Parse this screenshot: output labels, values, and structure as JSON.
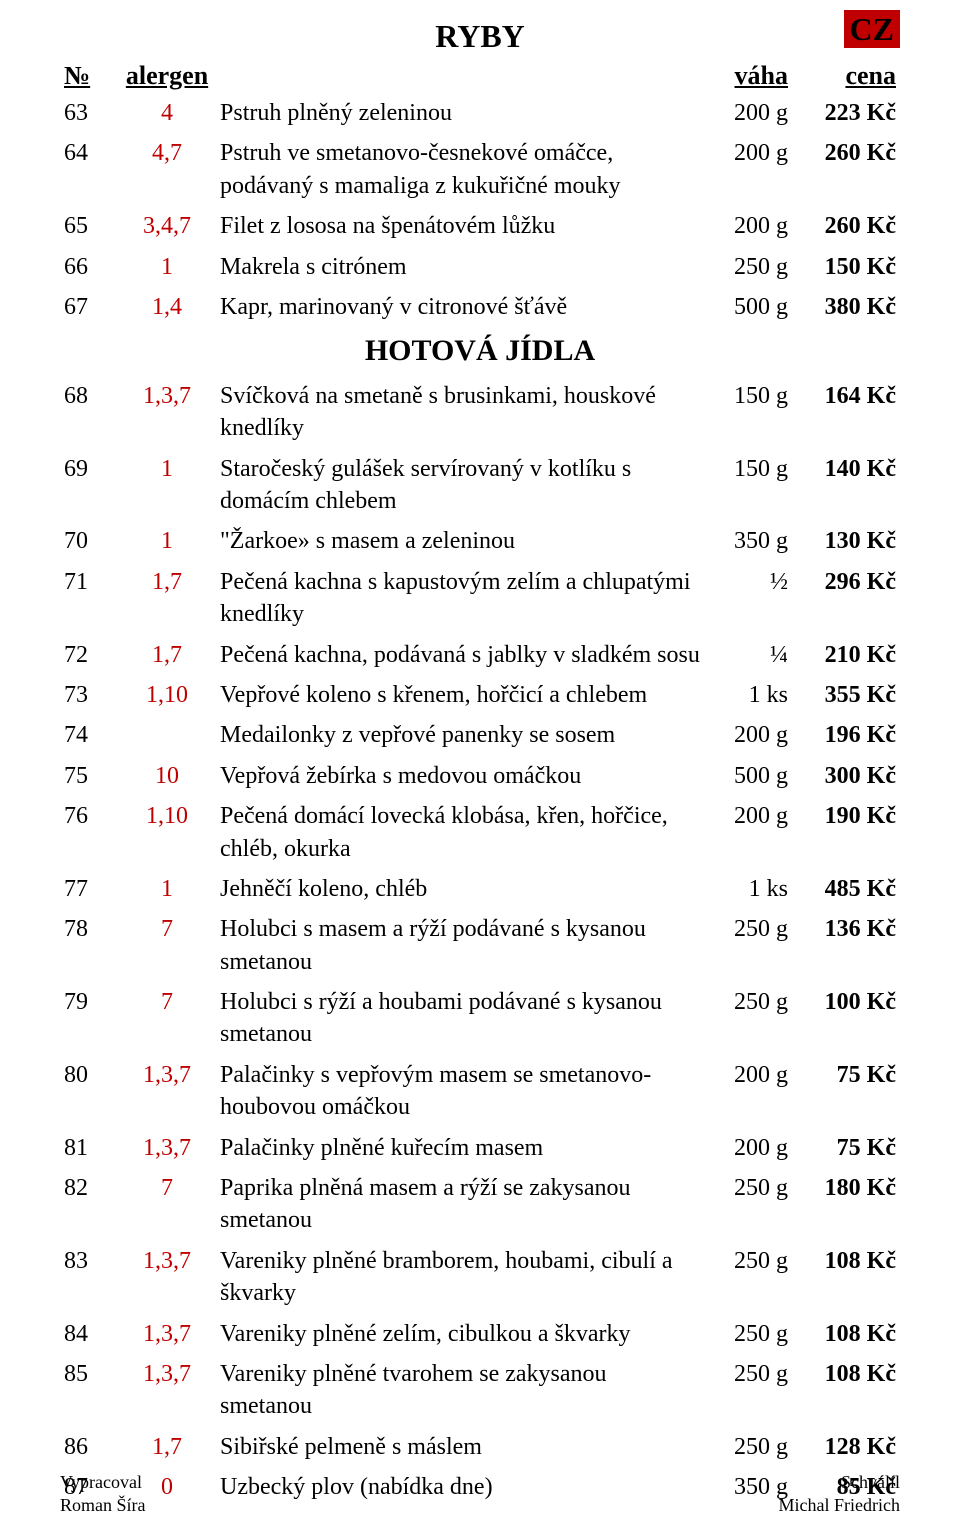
{
  "badge": "CZ",
  "headers": {
    "num": "№",
    "alergen": "alergen",
    "vaha": "váha",
    "cena": "cena"
  },
  "sections": [
    {
      "title": "RYBY",
      "rows": [
        {
          "num": "63",
          "alg": "4",
          "dish": "Pstruh plněný zeleninou",
          "wt": "200 g",
          "pr": "223 Kč"
        },
        {
          "num": "64",
          "alg": "4,7",
          "dish": "Pstruh ve smetanovo-česnekové omáčce, podávaný s mamaliga z kukuřičné mouky",
          "wt": "200 g",
          "pr": "260 Kč"
        },
        {
          "num": "65",
          "alg": "3,4,7",
          "dish": "Filet z lososa na špenátovém lůžku",
          "wt": "200 g",
          "pr": "260 Kč"
        },
        {
          "num": "66",
          "alg": "1",
          "dish": "Makrela s citrónem",
          "wt": "250 g",
          "pr": "150 Kč"
        },
        {
          "num": "67",
          "alg": "1,4",
          "dish": "Kapr, marinovaný v citronové šťávě",
          "wt": "500 g",
          "pr": "380 Kč"
        }
      ]
    },
    {
      "title": "HOTOVÁ JÍDLA",
      "rows": [
        {
          "num": "68",
          "alg": "1,3,7",
          "dish": "Svíčková na smetaně s brusinkami, houskové knedlíky",
          "wt": "150 g",
          "pr": "164 Kč"
        },
        {
          "num": "69",
          "alg": "1",
          "dish": "Staročeský gulášek servírovaný v kotlíku s domácím chlebem",
          "wt": "150 g",
          "pr": "140 Kč"
        },
        {
          "num": "70",
          "alg": "1",
          "dish": "\"Žarkoe» s masem a zeleninou",
          "wt": "350 g",
          "pr": "130 Kč"
        },
        {
          "num": "71",
          "alg": "1,7",
          "dish": "Pečená kachna s kapustovým zelím a chlupatými knedlíky",
          "wt": "½",
          "pr": "296 Kč"
        },
        {
          "num": "72",
          "alg": "1,7",
          "dish": "Pečená kachna, podávaná s jablky v sladkém sosu",
          "wt": "¼",
          "pr": "210 Kč"
        },
        {
          "num": "73",
          "alg": "1,10",
          "dish": "Vepřové koleno s křenem, hořčicí a chlebem",
          "wt": "1 ks",
          "pr": "355 Kč"
        },
        {
          "num": "74",
          "alg": "",
          "dish": "Medailonky z vepřové panenky se sosem",
          "wt": "200 g",
          "pr": "196 Kč"
        },
        {
          "num": "75",
          "alg": "10",
          "dish": "Vepřová žebírka s medovou omáčkou",
          "wt": "500 g",
          "pr": "300 Kč"
        },
        {
          "num": "76",
          "alg": "1,10",
          "dish": "Pečená domácí lovecká klobása, křen, hořčice, chléb, okurka",
          "wt": "200 g",
          "pr": "190 Kč"
        },
        {
          "num": "77",
          "alg": "1",
          "dish": "Jehněčí koleno, chléb",
          "wt": "1 ks",
          "pr": "485 Kč"
        },
        {
          "num": "78",
          "alg": "7",
          "dish": "Holubci s masem a rýží podávané s kysanou smetanou",
          "wt": "250 g",
          "pr": "136 Kč"
        },
        {
          "num": "79",
          "alg": "7",
          "dish": "Holubci s rýží a houbami podávané s kysanou smetanou",
          "wt": "250 g",
          "pr": "100 Kč"
        },
        {
          "num": "80",
          "alg": "1,3,7",
          "dish": "Palačinky s vepřovým masem se smetanovo-houbovou omáčkou",
          "wt": "200 g",
          "pr": "75 Kč"
        },
        {
          "num": "81",
          "alg": "1,3,7",
          "dish": "Palačinky plněné kuřecím masem",
          "wt": "200 g",
          "pr": "75 Kč"
        },
        {
          "num": "82",
          "alg": "7",
          "dish": "Paprika plněná masem a rýží se zakysanou smetanou",
          "wt": "250 g",
          "pr": "180 Kč"
        },
        {
          "num": "83",
          "alg": "1,3,7",
          "dish": "Vareniky plněné bramborem, houbami, cibulí a škvarky",
          "wt": "250 g",
          "pr": "108 Kč"
        },
        {
          "num": "84",
          "alg": "1,3,7",
          "dish": "Vareniky plněné zelím, cibulkou a škvarky",
          "wt": "250 g",
          "pr": "108 Kč"
        },
        {
          "num": "85",
          "alg": "1,3,7",
          "dish": "Vareniky plněné tvarohem se zakysanou smetanou",
          "wt": "250 g",
          "pr": "108 Kč"
        },
        {
          "num": "86",
          "alg": "1,7",
          "dish": "Sibiřské pelmeně s máslem",
          "wt": "250 g",
          "pr": "128 Kč"
        },
        {
          "num": "87",
          "alg": "0",
          "dish": "Uzbecký plov (nabídka dne)",
          "wt": "350 g",
          "pr": "85 Kč"
        }
      ]
    }
  ],
  "footer": {
    "left_label": "Vypracoval",
    "left_name": "Roman Šíra",
    "right_label": "Schválíl",
    "right_name": "Michal Friedrich"
  }
}
